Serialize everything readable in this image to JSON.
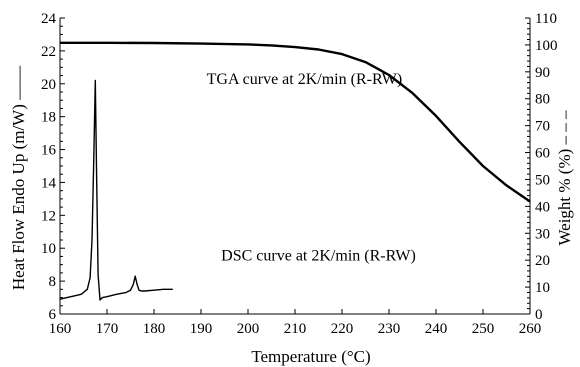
{
  "chart_data": {
    "type": "line",
    "title": "",
    "xlabel": "Temperature (°C)",
    "ylabel_left": "Heat Flow Endo Up (m/W) ——",
    "ylabel_right": "Weight % (%) – – –",
    "xlim": [
      160,
      260
    ],
    "ylim_left": [
      6,
      24
    ],
    "ylim_right": [
      0,
      110
    ],
    "x_ticks": [
      160,
      170,
      180,
      190,
      200,
      210,
      220,
      230,
      240,
      250,
      260
    ],
    "y_left_ticks": [
      6,
      8,
      10,
      12,
      14,
      16,
      18,
      20,
      22,
      24
    ],
    "y_right_ticks": [
      0,
      10,
      20,
      30,
      40,
      50,
      60,
      70,
      80,
      90,
      100,
      110
    ],
    "grid": false,
    "annotations": [
      {
        "text": "TGA curve at 2K/min (R-RW)",
        "x": 212,
        "y": 20.0
      },
      {
        "text": "DSC curve at 2K/min (R-RW)",
        "x": 215,
        "y": 9.25
      }
    ],
    "series": [
      {
        "axis": "right",
        "x": [
          160,
          170,
          180,
          190,
          200,
          205,
          210,
          215,
          220,
          225,
          230,
          235,
          240,
          245,
          250,
          255,
          260
        ],
        "values": [
          100.8,
          100.8,
          100.7,
          100.5,
          100.2,
          99.8,
          99.2,
          98.3,
          96.6,
          93.6,
          88.8,
          82.1,
          73.6,
          64.0,
          55.0,
          47.8,
          41.8
        ]
      },
      {
        "axis": "left",
        "x": [
          160,
          161.5,
          163,
          164.5,
          165.8,
          166.4,
          166.8,
          167.2,
          167.5,
          167.8,
          168.1,
          168.5,
          169,
          170,
          172,
          174,
          175,
          175.6,
          176,
          176.4,
          176.8,
          177.3,
          178,
          180,
          182,
          184
        ],
        "values": [
          6.9,
          7.0,
          7.1,
          7.2,
          7.5,
          8.2,
          10.5,
          15.5,
          20.2,
          14.0,
          8.4,
          6.85,
          7.0,
          7.05,
          7.2,
          7.3,
          7.45,
          7.8,
          8.3,
          7.8,
          7.45,
          7.4,
          7.4,
          7.45,
          7.5,
          7.5
        ]
      }
    ]
  }
}
